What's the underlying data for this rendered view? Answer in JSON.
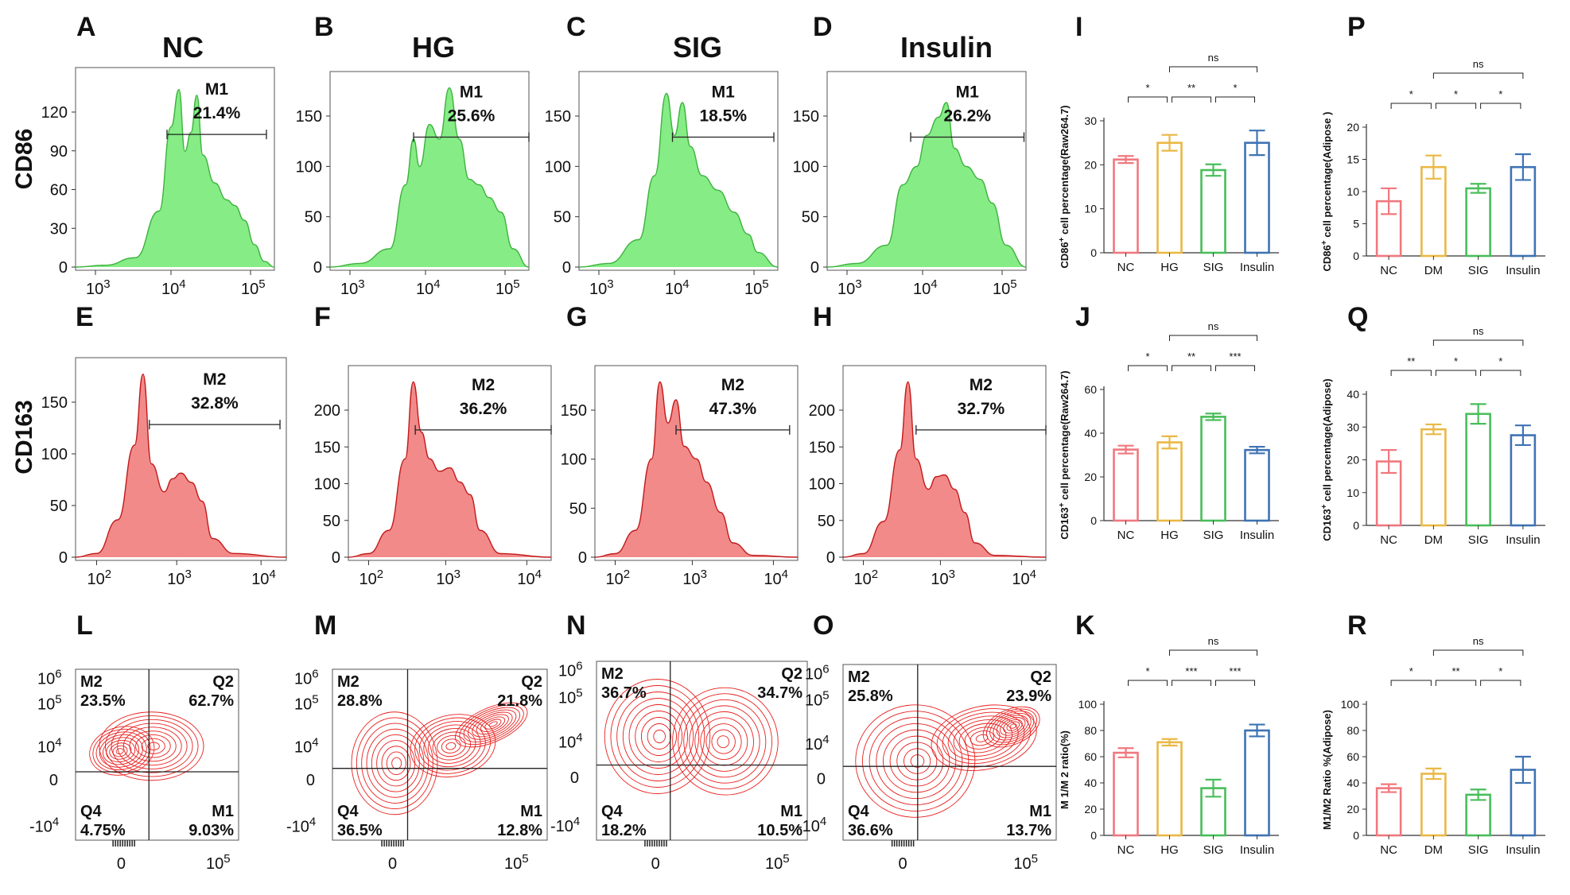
{
  "colors": {
    "green_fill": "#86EC86",
    "green_line": "#3CB23C",
    "red_fill": "#F28A8A",
    "red_line": "#C21A1A",
    "contour": "#E8201E",
    "bar_nc": "#F0787E",
    "bar_hg": "#EAB845",
    "bar_sig": "#48BE5A",
    "bar_ins": "#3F73B4"
  },
  "row_labels": {
    "cd86": "CD86",
    "cd163": "CD163"
  },
  "column_titles": [
    "NC",
    "HG",
    "SIG",
    "Insulin"
  ],
  "histograms": [
    {
      "letter": "A",
      "color": "green",
      "gate": "M1",
      "gate_pct": "21.4%",
      "yticks": [
        "0",
        "30",
        "60",
        "90",
        "120"
      ],
      "xticks": [
        "3",
        "4",
        "5"
      ],
      "shape": "cd86a"
    },
    {
      "letter": "B",
      "color": "green",
      "gate": "M1",
      "gate_pct": "25.6%",
      "yticks": [
        "0",
        "50",
        "100",
        "150"
      ],
      "xticks": [
        "3",
        "4",
        "5"
      ],
      "shape": "cd86b"
    },
    {
      "letter": "C",
      "color": "green",
      "gate": "M1",
      "gate_pct": "18.5%",
      "yticks": [
        "0",
        "50",
        "100",
        "150"
      ],
      "xticks": [
        "3",
        "4",
        "5"
      ],
      "shape": "cd86c"
    },
    {
      "letter": "D",
      "color": "green",
      "gate": "M1",
      "gate_pct": "26.2%",
      "yticks": [
        "0",
        "50",
        "100",
        "150"
      ],
      "xticks": [
        "3",
        "4",
        "5"
      ],
      "shape": "cd86d"
    },
    {
      "letter": "E",
      "color": "red",
      "gate": "M2",
      "gate_pct": "32.8%",
      "yticks": [
        "0",
        "50",
        "100",
        "150"
      ],
      "xticks": [
        "2",
        "3",
        "4"
      ],
      "shape": "cd163a"
    },
    {
      "letter": "F",
      "color": "red",
      "gate": "M2",
      "gate_pct": "36.2%",
      "yticks": [
        "0",
        "50",
        "100",
        "150",
        "200"
      ],
      "xticks": [
        "2",
        "3",
        "4"
      ],
      "shape": "cd163b"
    },
    {
      "letter": "G",
      "color": "red",
      "gate": "M2",
      "gate_pct": "47.3%",
      "yticks": [
        "0",
        "50",
        "100",
        "150"
      ],
      "xticks": [
        "2",
        "3",
        "4"
      ],
      "shape": "cd163c"
    },
    {
      "letter": "H",
      "color": "red",
      "gate": "M2",
      "gate_pct": "32.7%",
      "yticks": [
        "0",
        "50",
        "100",
        "150",
        "200"
      ],
      "xticks": [
        "2",
        "3",
        "4"
      ],
      "shape": "cd163d"
    }
  ],
  "log_base": "10",
  "contours": [
    {
      "letter": "L",
      "q1_label": "M2",
      "q1": "23.5%",
      "q2_label": "Q2",
      "q2": "62.7%",
      "q4_label": "Q4",
      "q4": "4.75%",
      "q3_label": "M1",
      "q3": "9.03%",
      "y6": "6",
      "y5": "5",
      "y4": "4",
      "yneg": "-4",
      "zero": "0",
      "x5": "5"
    },
    {
      "letter": "M",
      "q1_label": "M2",
      "q1": "28.8%",
      "q2_label": "Q2",
      "q2": "21.8%",
      "q4_label": "Q4",
      "q4": "36.5%",
      "q3_label": "M1",
      "q3": "12.8%",
      "y6": "6",
      "y5": "5",
      "y4": "4",
      "yneg": "-4",
      "zero": "0",
      "x5": "5"
    },
    {
      "letter": "N",
      "q1_label": "M2",
      "q1": "36.7%",
      "q2_label": "Q2",
      "q2": "34.7%",
      "q4_label": "Q4",
      "q4": "18.2%",
      "q3_label": "M1",
      "q3": "10.5%",
      "y6": "6",
      "y5": "5",
      "y4": "4",
      "yneg": "-4",
      "zero": "0",
      "x5": "5"
    },
    {
      "letter": "O",
      "q1_label": "M2",
      "q1": "25.8%",
      "q2_label": "Q2",
      "q2": "23.9%",
      "q4_label": "Q4",
      "q4": "36.6%",
      "q3_label": "M1",
      "q3": "13.7%",
      "y6": "6",
      "y5": "5",
      "y4": "4",
      "yneg": "-4",
      "zero": "0",
      "x5": "5"
    }
  ],
  "chart_data": [
    {
      "letter": "I",
      "type": "bar",
      "ylabel_pre": "CD86",
      "ylabel_sup": "+",
      "ylabel_post": " cell percentage(Raw264.7)",
      "categories": [
        "NC",
        "HG",
        "SIG",
        "Insulin"
      ],
      "values": [
        21.2,
        25,
        18.8,
        25
      ],
      "errors": [
        0.8,
        1.8,
        1.3,
        2.8
      ],
      "ylim": [
        0,
        30
      ],
      "yticks": [
        0,
        10,
        20,
        30
      ],
      "sig": [
        {
          "from": 0,
          "to": 1,
          "label": "*",
          "level": 0
        },
        {
          "from": 1,
          "to": 2,
          "label": "**",
          "level": 0
        },
        {
          "from": 2,
          "to": 3,
          "label": "*",
          "level": 0
        },
        {
          "from": 1,
          "to": 3,
          "label": "ns",
          "level": 1
        }
      ]
    },
    {
      "letter": "P",
      "type": "bar",
      "ylabel_pre": "CD86",
      "ylabel_sup": "+",
      "ylabel_post": " cell percentage(Adipose  )",
      "categories": [
        "NC",
        "DM",
        "SIG",
        "Insulin"
      ],
      "values": [
        8.5,
        13.8,
        10.5,
        13.8
      ],
      "errors": [
        2,
        1.8,
        0.7,
        2
      ],
      "ylim": [
        0,
        20
      ],
      "yticks": [
        0,
        5,
        10,
        15,
        20
      ],
      "sig": [
        {
          "from": 0,
          "to": 1,
          "label": "*",
          "level": 0
        },
        {
          "from": 1,
          "to": 2,
          "label": "*",
          "level": 0
        },
        {
          "from": 2,
          "to": 3,
          "label": "*",
          "level": 0
        },
        {
          "from": 1,
          "to": 3,
          "label": "ns",
          "level": 1
        }
      ]
    },
    {
      "letter": "J",
      "type": "bar",
      "ylabel_pre": "CD163",
      "ylabel_sup": "+",
      "ylabel_post": " cell percentage(Raw264.7)",
      "categories": [
        "NC",
        "HG",
        "SIG",
        "Insulin"
      ],
      "values": [
        32.5,
        35.8,
        47.5,
        32.3
      ],
      "errors": [
        1.8,
        2.8,
        1.5,
        1.5
      ],
      "ylim": [
        0,
        60
      ],
      "yticks": [
        0,
        20,
        40,
        60
      ],
      "sig": [
        {
          "from": 0,
          "to": 1,
          "label": "*",
          "level": 0
        },
        {
          "from": 1,
          "to": 2,
          "label": "**",
          "level": 0
        },
        {
          "from": 2,
          "to": 3,
          "label": "***",
          "level": 0
        },
        {
          "from": 1,
          "to": 3,
          "label": "ns",
          "level": 1
        }
      ]
    },
    {
      "letter": "Q",
      "type": "bar",
      "ylabel_pre": "CD163",
      "ylabel_sup": "+",
      "ylabel_post": " cell percentage(Adipose)",
      "categories": [
        "NC",
        "DM",
        "SIG",
        "Insulin"
      ],
      "values": [
        19.5,
        29.3,
        34,
        27.5
      ],
      "errors": [
        3.5,
        1.5,
        3,
        3
      ],
      "ylim": [
        0,
        40
      ],
      "yticks": [
        0,
        10,
        20,
        30,
        40
      ],
      "sig": [
        {
          "from": 0,
          "to": 1,
          "label": "**",
          "level": 0
        },
        {
          "from": 1,
          "to": 2,
          "label": "*",
          "level": 0
        },
        {
          "from": 2,
          "to": 3,
          "label": "*",
          "level": 0
        },
        {
          "from": 1,
          "to": 3,
          "label": "ns",
          "level": 1
        }
      ]
    },
    {
      "letter": "K",
      "type": "bar",
      "ylabel_pre": "M 1/M 2 ratio(%)",
      "ylabel_sup": "",
      "ylabel_post": "",
      "categories": [
        "NC",
        "HG",
        "SIG",
        "Insulin"
      ],
      "values": [
        63,
        71,
        36,
        80
      ],
      "errors": [
        3.5,
        2.5,
        6.5,
        4.5
      ],
      "ylim": [
        0,
        100
      ],
      "yticks": [
        0,
        20,
        40,
        60,
        80,
        100
      ],
      "sig": [
        {
          "from": 0,
          "to": 1,
          "label": "*",
          "level": 0
        },
        {
          "from": 1,
          "to": 2,
          "label": "***",
          "level": 0
        },
        {
          "from": 2,
          "to": 3,
          "label": "***",
          "level": 0
        },
        {
          "from": 1,
          "to": 3,
          "label": "ns",
          "level": 1
        }
      ]
    },
    {
      "letter": "R",
      "type": "bar",
      "ylabel_pre": "M1/M2 Ratio %(Adipose)",
      "ylabel_sup": "",
      "ylabel_post": "",
      "categories": [
        "NC",
        "DM",
        "SIG",
        "Insulin"
      ],
      "values": [
        36,
        47,
        31,
        50
      ],
      "errors": [
        3,
        4,
        4,
        10
      ],
      "ylim": [
        0,
        100
      ],
      "yticks": [
        0,
        20,
        40,
        60,
        80,
        100
      ],
      "sig": [
        {
          "from": 0,
          "to": 1,
          "label": "*",
          "level": 0
        },
        {
          "from": 1,
          "to": 2,
          "label": "**",
          "level": 0
        },
        {
          "from": 2,
          "to": 3,
          "label": "*",
          "level": 0
        },
        {
          "from": 1,
          "to": 3,
          "label": "ns",
          "level": 1
        }
      ]
    }
  ]
}
